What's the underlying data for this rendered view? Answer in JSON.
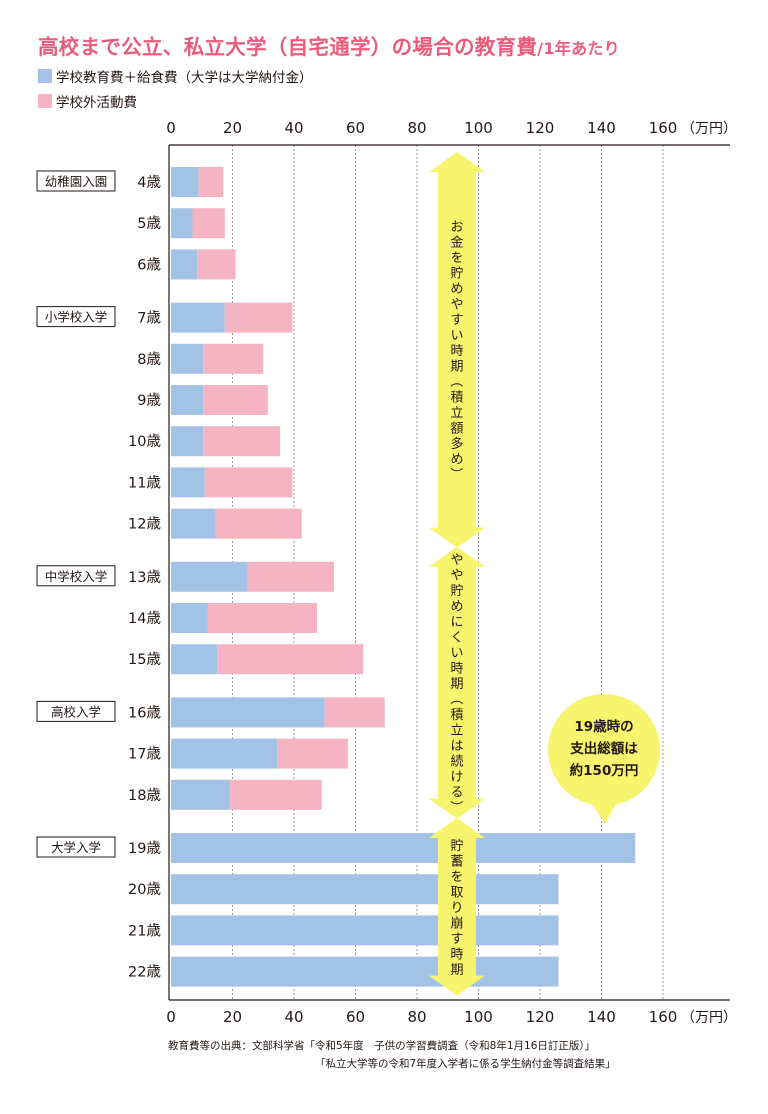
{
  "title": "高校まで公立、私立大学（自宅通学）の場合の教育費",
  "title_suffix": "/1年あたり",
  "legend": [
    {
      "label": "学校教育費＋給食費（大学は大学納付金）",
      "color": "#a3c3e6"
    },
    {
      "label": "学校外活動費",
      "color": "#f4b4c3"
    }
  ],
  "chart_data": {
    "type": "bar",
    "orientation": "horizontal",
    "stacked": true,
    "x_ticks": [
      0,
      20,
      40,
      60,
      80,
      100,
      120,
      140,
      160
    ],
    "x_unit": "（万円）",
    "xlim": [
      0,
      180
    ],
    "grid": true,
    "categories": [
      "4歳",
      "5歳",
      "6歳",
      "7歳",
      "8歳",
      "9歳",
      "10歳",
      "11歳",
      "12歳",
      "13歳",
      "14歳",
      "15歳",
      "16歳",
      "17歳",
      "18歳",
      "19歳",
      "20歳",
      "21歳",
      "22歳"
    ],
    "series": [
      {
        "name": "学校教育費＋給食費（大学は大学納付金）",
        "color": "#a3c3e6",
        "values": [
          9,
          7,
          8.5,
          17.5,
          10.5,
          10.5,
          10.5,
          11,
          14.5,
          25,
          12,
          15,
          50,
          34.5,
          19,
          151,
          126,
          126,
          126
        ]
      },
      {
        "name": "学校外活動費",
        "color": "#f4b4c3",
        "values": [
          8,
          10.5,
          12.5,
          22,
          19.5,
          21,
          25,
          28.5,
          28,
          28,
          35.5,
          47.5,
          19.5,
          23,
          30,
          0,
          0,
          0,
          0
        ]
      }
    ],
    "stage_labels": [
      {
        "label": "幼稚園入園",
        "at": "4歳"
      },
      {
        "label": "小学校入学",
        "at": "7歳"
      },
      {
        "label": "中学校入学",
        "at": "13歳"
      },
      {
        "label": "高校入学",
        "at": "16歳"
      },
      {
        "label": "大学入学",
        "at": "19歳"
      }
    ],
    "period_arrows": [
      {
        "text": "お金を貯めやすい時期（積立額多め）",
        "from": "4歳",
        "to": "12歳",
        "color": "#f7f46d"
      },
      {
        "text": "やや貯めにくい時期（積立は続ける）",
        "from": "13歳",
        "to": "18歳",
        "color": "#f7f46d"
      },
      {
        "text": "貯蓄を取り崩す時期",
        "from": "19歳",
        "to": "22歳",
        "color": "#f7f46d"
      }
    ],
    "annotation": {
      "lines": [
        "19歳時の",
        "支出総額は",
        "約150万円"
      ],
      "color": "#f7f46d"
    }
  },
  "source": {
    "line1": "教育費等の出典：文部科学省「令和5年度　子供の学習費調査（令和8年1月16日訂正版）」",
    "line2": "「私立大学等の令和7年度入学者に係る学生納付金等調査結果」"
  }
}
